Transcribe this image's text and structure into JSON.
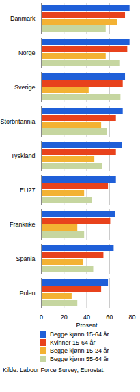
{
  "chart_data": {
    "type": "bar",
    "orientation": "horizontal",
    "grid": true,
    "categories": [
      "Danmark",
      "Norge",
      "Sverige",
      "Storbritannia",
      "Tyskland",
      "EU27",
      "Frankrike",
      "Spania",
      "Polen"
    ],
    "series": [
      {
        "name": "Begge kjønn 15-64 år",
        "color": "#1f5fd8",
        "values": [
          78,
          78,
          74,
          72,
          71,
          66,
          65,
          64,
          59
        ]
      },
      {
        "name": "Kvinner 15-64 år",
        "color": "#e8421c",
        "values": [
          74,
          76,
          72,
          66,
          66,
          59,
          61,
          55,
          53
        ]
      },
      {
        "name": "Begge kjønn 15-24 år",
        "color": "#f3b233",
        "values": [
          67,
          57,
          42,
          53,
          47,
          38,
          32,
          37,
          27
        ]
      },
      {
        "name": "Begge kjønn 55-64 år",
        "color": "#c6d6a0",
        "values": [
          57,
          69,
          70,
          58,
          54,
          45,
          38,
          46,
          32
        ]
      }
    ],
    "xlabel": "Prosent",
    "xlim": [
      0,
      80
    ],
    "xticks": [
      0,
      20,
      40,
      60,
      80
    ],
    "legend": "bottom",
    "source": "Kilde: Labour Force Survey, Eurostat."
  }
}
